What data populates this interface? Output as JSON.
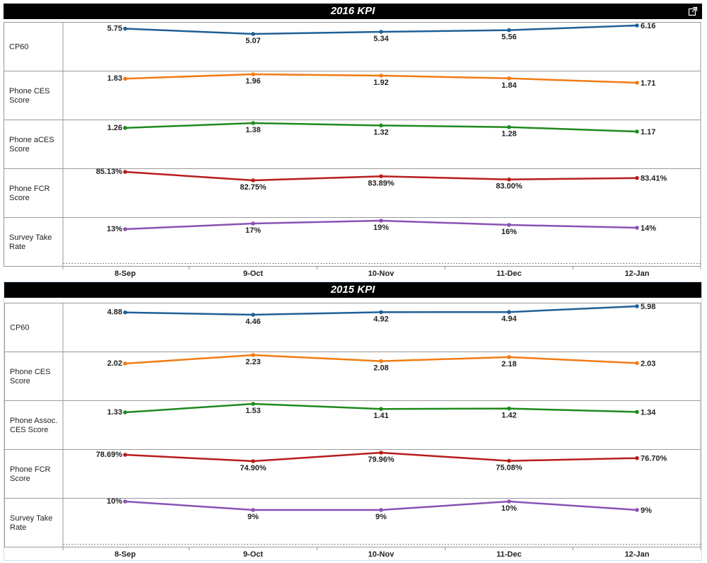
{
  "chart_data": [
    {
      "type": "line",
      "title": "2016 KPI",
      "categories": [
        "8-Sep",
        "9-Oct",
        "10-Nov",
        "11-Dec",
        "12-Jan"
      ],
      "rows": [
        {
          "label": "CP60",
          "color": "#1f5f96",
          "values": [
            5.75,
            5.07,
            5.34,
            5.56,
            6.16
          ],
          "labels": [
            "5.75",
            "5.07",
            "5.34",
            "5.56",
            "6.16"
          ]
        },
        {
          "label": "Phone CES Score",
          "color": "#f07c14",
          "values": [
            1.83,
            1.96,
            1.92,
            1.84,
            1.71
          ],
          "labels": [
            "1.83",
            "1.96",
            "1.92",
            "1.84",
            "1.71"
          ]
        },
        {
          "label": "Phone aCES Score",
          "color": "#1e8a1e",
          "values": [
            1.26,
            1.38,
            1.32,
            1.28,
            1.17
          ],
          "labels": [
            "1.26",
            "1.38",
            "1.32",
            "1.28",
            "1.17"
          ]
        },
        {
          "label": "Phone FCR Score",
          "color": "#b81c1c",
          "values": [
            85.13,
            82.75,
            83.89,
            83.0,
            83.41
          ],
          "labels": [
            "85.13%",
            "82.75%",
            "83.89%",
            "83.00%",
            "83.41%"
          ]
        },
        {
          "label": "Survey Take Rate",
          "color": "#8a52b5",
          "values": [
            13,
            17,
            19,
            16,
            14
          ],
          "labels": [
            "13%",
            "17%",
            "19%",
            "16%",
            "14%"
          ]
        }
      ]
    },
    {
      "type": "line",
      "title": "2015 KPI",
      "categories": [
        "8-Sep",
        "9-Oct",
        "10-Nov",
        "11-Dec",
        "12-Jan"
      ],
      "rows": [
        {
          "label": "CP60",
          "color": "#1f5f96",
          "values": [
            4.88,
            4.46,
            4.92,
            4.94,
            5.98
          ],
          "labels": [
            "4.88",
            "4.46",
            "4.92",
            "4.94",
            "5.98"
          ]
        },
        {
          "label": "Phone CES Score",
          "color": "#f07c14",
          "values": [
            2.02,
            2.23,
            2.08,
            2.18,
            2.03
          ],
          "labels": [
            "2.02",
            "2.23",
            "2.08",
            "2.18",
            "2.03"
          ]
        },
        {
          "label": "Phone Assoc. CES Score",
          "color": "#1e8a1e",
          "values": [
            1.33,
            1.53,
            1.41,
            1.42,
            1.34
          ],
          "labels": [
            "1.33",
            "1.53",
            "1.41",
            "1.42",
            "1.34"
          ]
        },
        {
          "label": "Phone FCR Score",
          "color": "#b81c1c",
          "values": [
            78.69,
            74.9,
            79.96,
            75.08,
            76.7
          ],
          "labels": [
            "78.69%",
            "74.90%",
            "79.96%",
            "75.08%",
            "76.70%"
          ]
        },
        {
          "label": "Survey Take Rate",
          "color": "#8a52b5",
          "values": [
            10,
            9,
            9,
            10,
            9
          ],
          "labels": [
            "10%",
            "9%",
            "9%",
            "10%",
            "9%"
          ]
        }
      ]
    }
  ]
}
